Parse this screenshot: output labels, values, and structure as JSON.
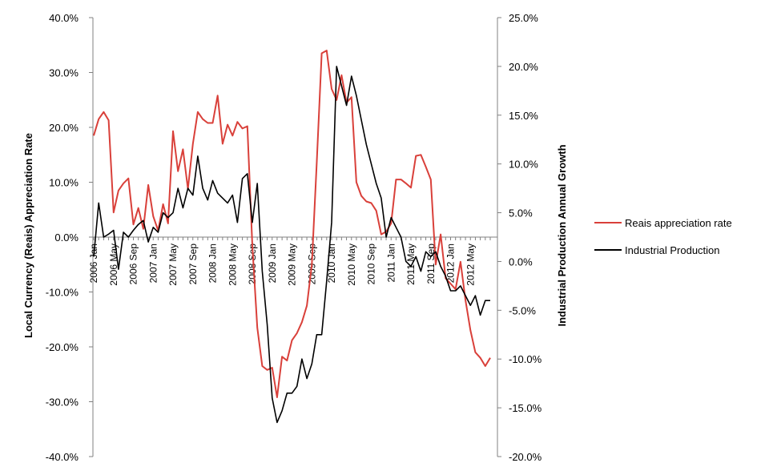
{
  "chart_data": {
    "type": "line",
    "ylabel": "Local Currency (Reais) Appreciation Rate",
    "y2label": "Industrial Production Annual Growth",
    "ylim": [
      -40,
      40
    ],
    "y2lim": [
      -20,
      25
    ],
    "y_ticks": [
      "40.0%",
      "30.0%",
      "20.0%",
      "10.0%",
      "0.0%",
      "-10.0%",
      "-20.0%",
      "-30.0%",
      "-40.0%"
    ],
    "y2_ticks": [
      "25.0%",
      "20.0%",
      "15.0%",
      "10.0%",
      "5.0%",
      "0.0%",
      "-5.0%",
      "-10.0%",
      "-15.0%",
      "-20.0%"
    ],
    "x_ticks": [
      "2006 Jan",
      "2006 May",
      "2006 Sep",
      "2007 Jan",
      "2007 May",
      "2007 Sep",
      "2008 Jan",
      "2008 May",
      "2008 Sep",
      "2009 Jan",
      "2009 May",
      "2009 Sep",
      "2010 Jan",
      "2010 May",
      "2010 Sep",
      "2011 Jan",
      "2011 May",
      "2011 Sep",
      "2012 Jan",
      "2012 May"
    ],
    "legend_position": "right",
    "series": [
      {
        "name": "Reais appreciation rate",
        "axis": "left",
        "color": "#d9403a",
        "values": [
          18.5,
          21.5,
          22.8,
          21.3,
          4.5,
          8.5,
          9.8,
          10.7,
          2.3,
          5.3,
          1.5,
          9.5,
          3.8,
          1.2,
          6.0,
          2.5,
          19.3,
          12.0,
          16.0,
          8.8,
          17.0,
          22.8,
          21.5,
          20.8,
          20.8,
          25.8,
          17.0,
          20.5,
          18.5,
          21.0,
          19.8,
          20.2,
          -1.5,
          -16.5,
          -23.5,
          -24.2,
          -23.8,
          -29.2,
          -21.8,
          -22.5,
          -18.8,
          -17.5,
          -15.5,
          -12.5,
          -5.0,
          13.5,
          33.5,
          34.0,
          27.0,
          25.0,
          29.5,
          24.5,
          25.5,
          10.0,
          7.5,
          6.5,
          6.2,
          4.8,
          0.5,
          1.0,
          2.5,
          10.5,
          10.5,
          9.8,
          9.0,
          14.8,
          15.0,
          12.8,
          10.5,
          -5.0,
          0.5,
          -7.5,
          -8.5,
          -9.5,
          -4.5,
          -11.5,
          -17.0,
          -21.0,
          -22.0,
          -23.5,
          -22.0
        ],
        "series_index": 0
      },
      {
        "name": "Industrial Production",
        "axis": "right",
        "color": "#000000",
        "values": [
          0.5,
          6.0,
          2.5,
          2.8,
          3.2,
          -0.8,
          3.0,
          2.5,
          3.2,
          3.8,
          4.2,
          2.0,
          3.5,
          3.0,
          5.0,
          4.5,
          5.0,
          7.5,
          5.5,
          7.5,
          6.8,
          10.8,
          7.5,
          6.3,
          8.3,
          7.0,
          6.5,
          6.0,
          6.8,
          4.0,
          8.5,
          9.0,
          4.0,
          8.0,
          -1.0,
          -6.5,
          -14.0,
          -16.5,
          -15.3,
          -13.5,
          -13.5,
          -12.8,
          -10.0,
          -12.0,
          -10.5,
          -7.5,
          -7.5,
          -2.0,
          4.0,
          20.0,
          18.0,
          16.0,
          19.0,
          17.0,
          14.5,
          12.0,
          10.0,
          8.0,
          6.5,
          2.5,
          4.5,
          3.5,
          2.5,
          0.0,
          -0.5,
          0.5,
          -1.0,
          1.0,
          0.5,
          1.0,
          -0.5,
          -1.5,
          -3.0,
          -3.0,
          -2.5,
          -3.5,
          -4.5,
          -3.5,
          -5.5,
          -4.0,
          -4.0
        ],
        "series_index": 1
      }
    ]
  }
}
